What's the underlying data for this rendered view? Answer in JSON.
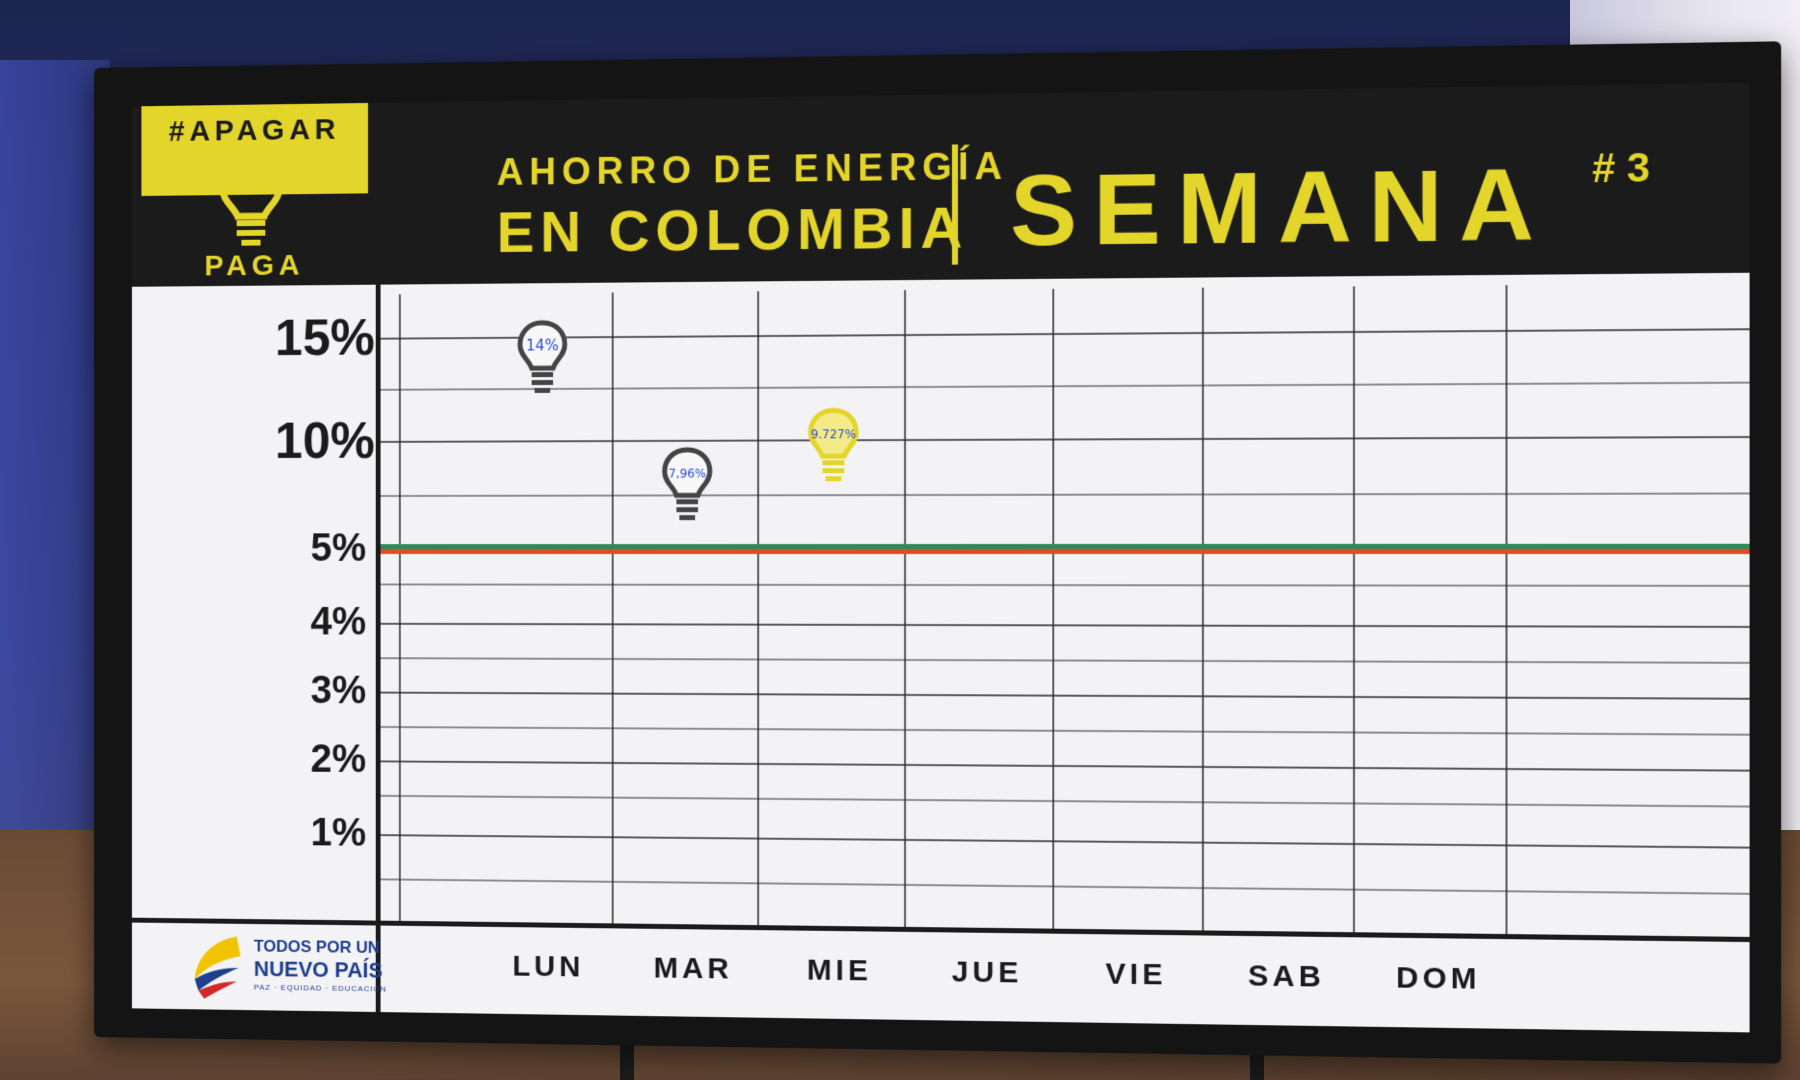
{
  "hashtag": "#APAGAR",
  "paga": "PAGA",
  "title_line1": "AHORRO DE ENERGÍA",
  "title_line2": "EN COLOMBIA",
  "week_label": "SEMANA",
  "week_number": "# 3",
  "logo": {
    "line1": "TODOS POR UN",
    "line2": "NUEVO PAÍS",
    "line3": "PAZ · EQUIDAD · EDUCACIÓN"
  },
  "colors": {
    "accent_yellow": "#e4d52b",
    "header_black": "#1b1b1b",
    "goal_green": "#2e8b57",
    "goal_red": "#e04a2f",
    "bulb_gray": "#444444"
  },
  "chart_data": {
    "type": "scatter",
    "title": "AHORRO DE ENERGÍA EN COLOMBIA",
    "subtitle": "SEMANA # 3",
    "categories": [
      "LUN",
      "MAR",
      "MIE",
      "JUE",
      "VIE",
      "SAB",
      "DOM"
    ],
    "y_ticks": [
      {
        "value": 1,
        "label": "1%"
      },
      {
        "value": 2,
        "label": "2%"
      },
      {
        "value": 3,
        "label": "3%"
      },
      {
        "value": 4,
        "label": "4%"
      },
      {
        "value": 5,
        "label": "5%"
      },
      {
        "value": 10,
        "label": "10%"
      },
      {
        "value": 15,
        "label": "15%"
      }
    ],
    "points": [
      {
        "category": "LUN",
        "value": 14,
        "label": "14%",
        "color": "gray"
      },
      {
        "category": "MAR",
        "value": 7.96,
        "label": "7,96%",
        "color": "gray"
      },
      {
        "category": "MIE",
        "value": 9.727,
        "label": "9.727%",
        "color": "yellow"
      }
    ],
    "goal_line": {
      "value": 5
    },
    "grid": true
  }
}
